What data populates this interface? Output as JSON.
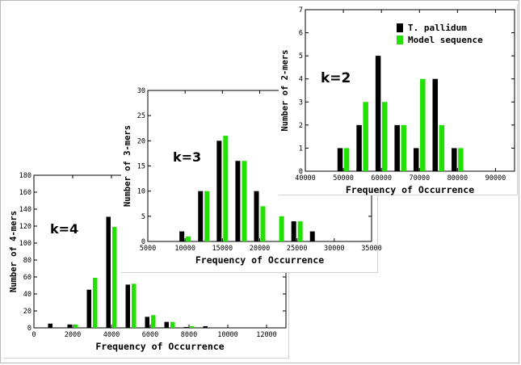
{
  "colors": {
    "t_pallidum": "#000000",
    "model": "#22e000"
  },
  "chart_data": [
    {
      "type": "bar",
      "k_label": "k=2",
      "xlabel": "Frequency of Occurrence",
      "ylabel": "Number of 2-mers",
      "xlim": [
        40000,
        95000
      ],
      "ylim": [
        0,
        7
      ],
      "xticks": [
        40000,
        50000,
        60000,
        70000,
        80000,
        90000
      ],
      "yticks": [
        0,
        1,
        2,
        3,
        4,
        5,
        6,
        7
      ],
      "legend": {
        "placement": "top-right",
        "entries": [
          "T. pallidum",
          "Model sequence"
        ]
      },
      "x": [
        50000,
        55000,
        60000,
        65000,
        70000,
        75000,
        80000
      ],
      "series": [
        {
          "name": "T. pallidum",
          "values": [
            1,
            2,
            5,
            2,
            1,
            4,
            1
          ]
        },
        {
          "name": "Model sequence",
          "values": [
            1,
            3,
            3,
            2,
            4,
            2,
            1
          ]
        }
      ]
    },
    {
      "type": "bar",
      "k_label": "k=3",
      "xlabel": "Frequency of Occurrence",
      "ylabel": "Number of 3-mers",
      "xlim": [
        5000,
        35000
      ],
      "ylim": [
        0,
        30
      ],
      "xticks": [
        5000,
        10000,
        15000,
        20000,
        25000,
        30000,
        35000
      ],
      "yticks": [
        0,
        5,
        10,
        15,
        20,
        25,
        30
      ],
      "x": [
        10000,
        12500,
        15000,
        17500,
        20000,
        22500,
        25000,
        27500
      ],
      "series": [
        {
          "name": "T. pallidum",
          "values": [
            2,
            10,
            20,
            16,
            10,
            0,
            4,
            2
          ]
        },
        {
          "name": "Model sequence",
          "values": [
            1,
            10,
            21,
            16,
            7,
            5,
            4,
            0
          ]
        }
      ]
    },
    {
      "type": "bar",
      "k_label": "k=4",
      "xlabel": "Frequency of Occurrence",
      "ylabel": "Number of 4-mers",
      "xlim": [
        0,
        13000
      ],
      "ylim": [
        0,
        180
      ],
      "xticks": [
        0,
        2000,
        4000,
        6000,
        8000,
        10000,
        12000
      ],
      "yticks": [
        0,
        20,
        40,
        60,
        80,
        100,
        120,
        140,
        160,
        180
      ],
      "x": [
        1000,
        2000,
        3000,
        4000,
        5000,
        6000,
        7000,
        8000,
        9000,
        10000
      ],
      "series": [
        {
          "name": "T. pallidum",
          "values": [
            5,
            4,
            45,
            131,
            51,
            13,
            7,
            1,
            2,
            0
          ]
        },
        {
          "name": "Model sequence",
          "values": [
            0,
            4,
            59,
            119,
            52,
            15,
            7,
            2,
            0,
            0
          ]
        }
      ]
    }
  ]
}
